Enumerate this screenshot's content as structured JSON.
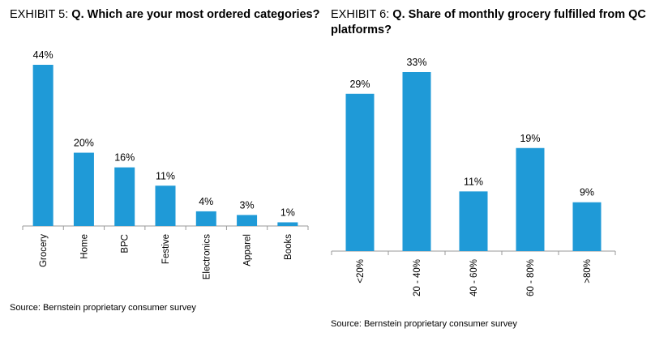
{
  "exhibits": [
    {
      "prefix": "EXHIBIT 5: ",
      "question": "Q. Which are your most ordered categories?",
      "source": "Source: Bernstein proprietary consumer survey",
      "chart_data": {
        "type": "bar",
        "categories": [
          "Grocery",
          "Home",
          "BPC",
          "Festive",
          "Electronics",
          "Apparel",
          "Books"
        ],
        "values": [
          44,
          20,
          16,
          11,
          4,
          3,
          1
        ],
        "value_labels": [
          "44%",
          "20%",
          "16%",
          "11%",
          "4%",
          "3%",
          "1%"
        ],
        "title": "Q. Which are your most ordered categories?",
        "xlabel": "",
        "ylabel": "",
        "unit": "%",
        "ylim": [
          0,
          44
        ],
        "grid": false,
        "bar_color": "#1f9ad7"
      }
    },
    {
      "prefix": "EXHIBIT 6: ",
      "question": "Q. Share of monthly grocery fulfilled from QC platforms?",
      "source": "Source: Bernstein proprietary consumer survey",
      "chart_data": {
        "type": "bar",
        "categories": [
          "<20%",
          "20 - 40%",
          "40 - 60%",
          "60 - 80%",
          ">80%"
        ],
        "values": [
          29,
          33,
          11,
          19,
          9
        ],
        "value_labels": [
          "29%",
          "33%",
          "11%",
          "19%",
          "9%"
        ],
        "title": "Q. Share of monthly grocery fulfilled from QC platforms?",
        "xlabel": "",
        "ylabel": "",
        "unit": "%",
        "ylim": [
          0,
          33
        ],
        "grid": false,
        "bar_color": "#1f9ad7"
      }
    }
  ]
}
